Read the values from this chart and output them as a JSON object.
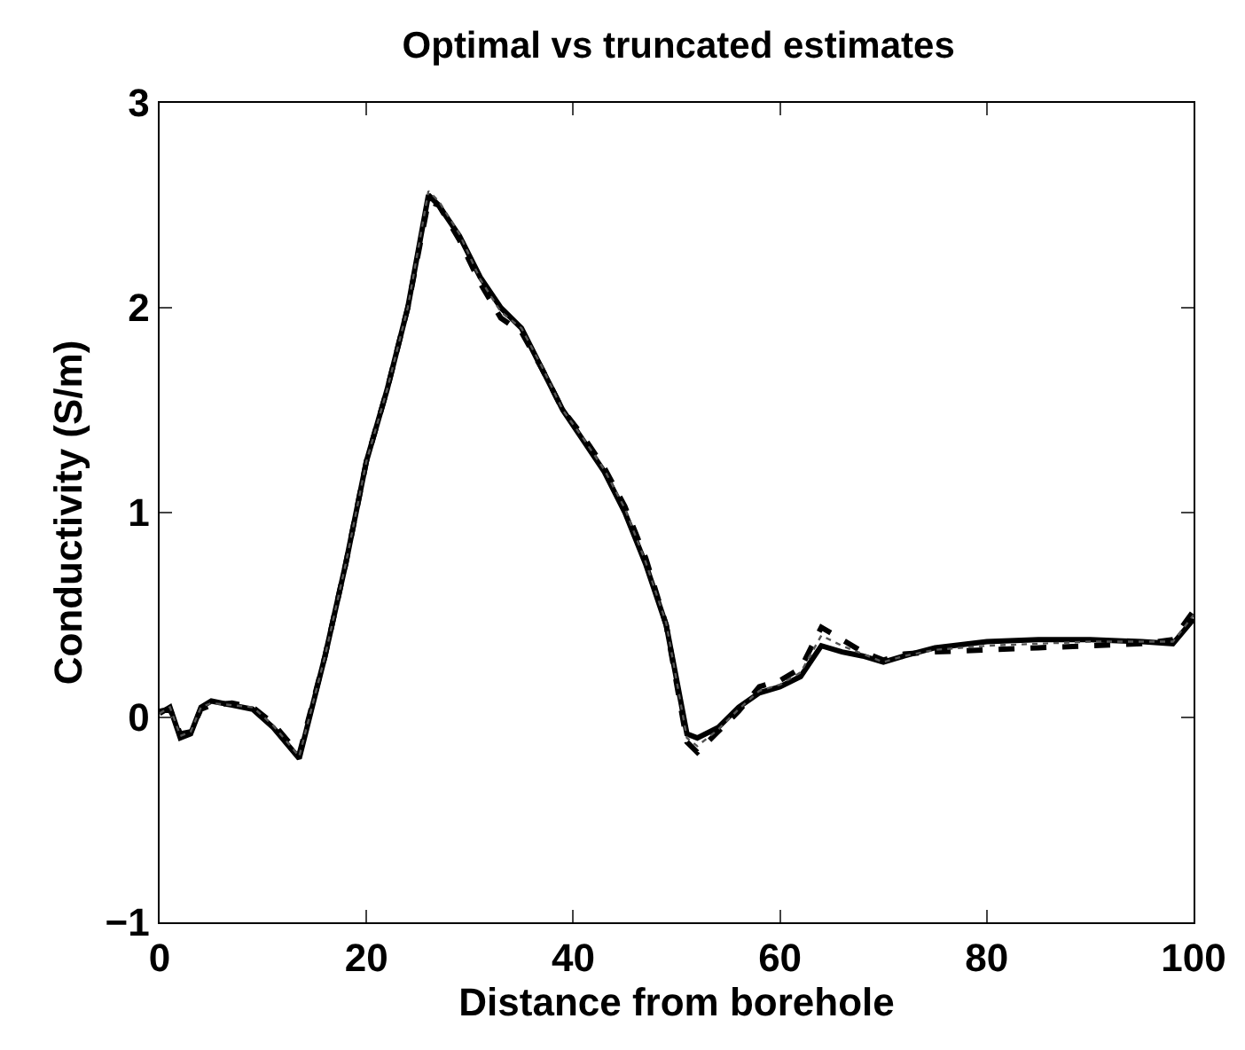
{
  "chart_data": {
    "type": "line",
    "title": "Optimal vs truncated estimates",
    "xlabel": "Distance from borehole",
    "ylabel": "Conductivity (S/m)",
    "xlim": [
      0,
      100
    ],
    "xticks": [
      0,
      20,
      40,
      60,
      80,
      100
    ],
    "ylim": [
      -1,
      3
    ],
    "yticks": [
      {
        "value": -1,
        "label": "−1"
      },
      0,
      1,
      2,
      3
    ],
    "grid": false,
    "series": [
      {
        "color": "#000000",
        "line_style": "solid",
        "x": [
          0,
          1,
          2,
          3,
          4,
          5,
          7,
          9,
          11,
          13.5,
          16,
          18,
          20,
          22,
          24,
          26,
          27,
          29,
          31,
          33,
          35,
          37,
          39,
          41,
          43,
          45,
          47,
          49,
          51,
          52,
          54,
          56,
          58,
          60,
          62,
          64,
          66,
          68,
          70,
          72,
          75,
          80,
          85,
          90,
          95,
          98,
          100
        ],
        "values": [
          0.02,
          0.05,
          -0.1,
          -0.08,
          0.05,
          0.08,
          0.06,
          0.04,
          -0.05,
          -0.2,
          0.3,
          0.75,
          1.25,
          1.6,
          2.0,
          2.55,
          2.5,
          2.35,
          2.15,
          2.0,
          1.9,
          1.7,
          1.5,
          1.35,
          1.2,
          1.0,
          0.75,
          0.45,
          -0.08,
          -0.1,
          -0.05,
          0.05,
          0.12,
          0.15,
          0.2,
          0.35,
          0.32,
          0.3,
          0.27,
          0.3,
          0.34,
          0.37,
          0.38,
          0.38,
          0.37,
          0.36,
          0.48
        ]
      },
      {
        "color": "#000000",
        "line_style": "dashed",
        "x": [
          0,
          1,
          2,
          3,
          4,
          5,
          7,
          9,
          11,
          13.5,
          16,
          18,
          20,
          22,
          24,
          26,
          27,
          29,
          31,
          33,
          35,
          37,
          39,
          41,
          43,
          45,
          47,
          49,
          51,
          52,
          54,
          56,
          58,
          60,
          62,
          64,
          66,
          68,
          70,
          72,
          75,
          80,
          85,
          90,
          95,
          98,
          100
        ],
        "values": [
          0.03,
          0.04,
          -0.08,
          -0.07,
          0.04,
          0.06,
          0.07,
          0.05,
          -0.03,
          -0.18,
          0.3,
          0.75,
          1.25,
          1.6,
          2.0,
          2.52,
          2.5,
          2.33,
          2.12,
          1.95,
          1.88,
          1.7,
          1.5,
          1.37,
          1.22,
          1.03,
          0.78,
          0.45,
          -0.12,
          -0.17,
          -0.07,
          0.03,
          0.15,
          0.18,
          0.24,
          0.44,
          0.38,
          0.32,
          0.28,
          0.31,
          0.32,
          0.33,
          0.34,
          0.35,
          0.36,
          0.38,
          0.52
        ]
      },
      {
        "color": "#555555",
        "line_style": "dotted",
        "x": [
          0,
          1,
          2,
          3,
          4,
          5,
          7,
          9,
          11,
          13.5,
          16,
          18,
          20,
          22,
          24,
          26,
          27,
          29,
          31,
          33,
          35,
          37,
          39,
          41,
          43,
          45,
          47,
          49,
          51,
          52,
          54,
          56,
          58,
          60,
          62,
          64,
          66,
          68,
          70,
          72,
          75,
          80,
          85,
          90,
          95,
          98,
          100
        ],
        "values": [
          0.02,
          0.05,
          -0.09,
          -0.07,
          0.05,
          0.07,
          0.06,
          0.05,
          -0.04,
          -0.19,
          0.3,
          0.75,
          1.25,
          1.6,
          2.0,
          2.57,
          2.52,
          2.36,
          2.14,
          1.98,
          1.9,
          1.71,
          1.5,
          1.36,
          1.21,
          1.02,
          0.76,
          0.46,
          -0.1,
          -0.14,
          -0.06,
          0.04,
          0.13,
          0.16,
          0.22,
          0.4,
          0.35,
          0.31,
          0.27,
          0.3,
          0.33,
          0.35,
          0.36,
          0.37,
          0.37,
          0.37,
          0.5
        ]
      }
    ]
  }
}
